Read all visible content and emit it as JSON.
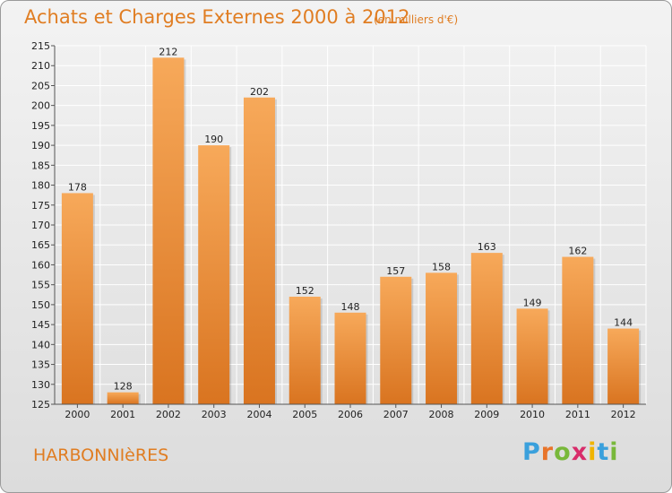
{
  "header": {
    "title": "Achats et Charges Externes 2000 à 2012",
    "subtitle": "(en milliers d'€)"
  },
  "footer": {
    "commune": "HARBONNIèRES",
    "logo": {
      "letters": [
        "P",
        "r",
        "o",
        "x",
        "i",
        "t",
        "i"
      ],
      "colors": [
        "#3aa0dc",
        "#e8742a",
        "#78b83a",
        "#d82c6a",
        "#f0b400",
        "#3aa0dc",
        "#78b83a"
      ]
    }
  },
  "colors": {
    "accent": "#e07d22",
    "bar_top": "#f7a95a",
    "bar_bottom": "#d97420",
    "grid": "#ffffff",
    "axis": "#555555"
  },
  "chart_data": {
    "type": "bar",
    "title": "Achats et Charges Externes 2000 à 2012",
    "subtitle": "(en milliers d'€)",
    "categories": [
      "2000",
      "2001",
      "2002",
      "2003",
      "2004",
      "2005",
      "2006",
      "2007",
      "2008",
      "2009",
      "2010",
      "2011",
      "2012"
    ],
    "values": [
      178,
      128,
      212,
      190,
      202,
      152,
      148,
      157,
      158,
      163,
      149,
      162,
      144
    ],
    "ylim": [
      125,
      215
    ],
    "yticks": [
      125,
      130,
      135,
      140,
      145,
      150,
      155,
      160,
      165,
      170,
      175,
      180,
      185,
      190,
      195,
      200,
      205,
      210,
      215
    ],
    "xlabel": "",
    "ylabel": "",
    "grid": true,
    "legend": "none"
  }
}
